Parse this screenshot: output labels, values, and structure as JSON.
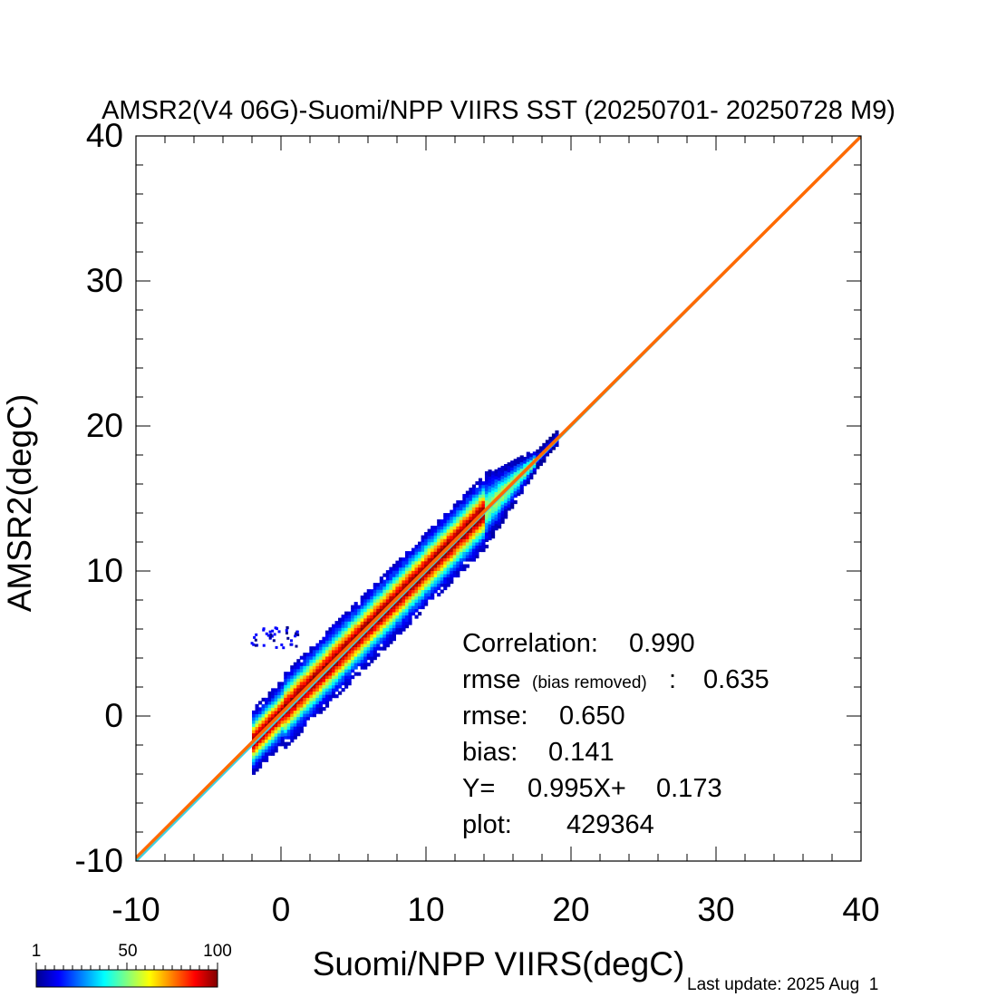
{
  "chart_data": {
    "type": "scatter",
    "title": "AMSR2(V4 06G)-Suomi/NPP VIIRS SST (20250701- 20250728 M9)",
    "xlabel": "Suomi/NPP VIIRS(degC)",
    "ylabel": "AMSR2(degC)",
    "xlim": [
      -10,
      40
    ],
    "ylim": [
      -10,
      40
    ],
    "x_ticks": [
      "-10",
      "0",
      "10",
      "20",
      "30",
      "40"
    ],
    "y_ticks": [
      "-10",
      "0",
      "10",
      "20",
      "30",
      "40"
    ],
    "density_range": [
      -2,
      19
    ],
    "density_center_start": [
      0,
      0
    ],
    "density_outlier_cluster": [
      -0.5,
      5.5
    ],
    "lines": [
      {
        "kind": "one-to-one",
        "color": "#40d0e0",
        "x": [
          -10,
          40
        ],
        "y": [
          -10,
          40
        ]
      },
      {
        "kind": "regression",
        "color": "#ff6a00",
        "slope": 0.995,
        "intercept": 0.173
      }
    ],
    "stats": {
      "correlation_label": "Correlation:",
      "correlation_value": "0.990",
      "rmse_br_label": "rmse",
      "rmse_br_qualifier": "(bias removed)",
      "rmse_br_sep": ":",
      "rmse_br_value": "0.635",
      "rmse_label": "rmse:",
      "rmse_value": "0.650",
      "bias_label": "bias:",
      "bias_value": "0.141",
      "fit_label": "Y=",
      "fit_slope": "0.995X+",
      "fit_intercept": "0.173",
      "count_label": "plot:",
      "count_value": "429364"
    },
    "colorbar": {
      "ticks": [
        "1",
        "50",
        "100"
      ],
      "range": [
        1,
        100
      ],
      "colors": [
        "#00008f",
        "#0000ff",
        "#0080ff",
        "#00ffff",
        "#80ff80",
        "#ffff00",
        "#ff8000",
        "#ff0000",
        "#800000"
      ]
    }
  },
  "footer": {
    "last_update": "Last update: 2025 Aug  1"
  }
}
